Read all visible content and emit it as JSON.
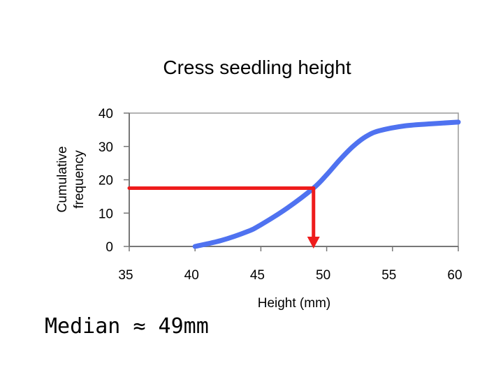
{
  "chart_data": {
    "type": "line",
    "title": "Cress seedling height",
    "xlabel": "Height (mm)",
    "ylabel_line1": "Cumulative",
    "ylabel_line2": "frequency",
    "xlim": [
      35,
      60
    ],
    "ylim": [
      0,
      40
    ],
    "x_ticks": [
      35,
      40,
      45,
      50,
      55,
      60
    ],
    "y_ticks": [
      0,
      10,
      20,
      30,
      40
    ],
    "grid": false,
    "series": [
      {
        "color": "#4f72f0",
        "points": [
          [
            40,
            0
          ],
          [
            42,
            1.8
          ],
          [
            44,
            4.5
          ],
          [
            45,
            6.5
          ],
          [
            47,
            11.5
          ],
          [
            49,
            17.5
          ],
          [
            50,
            21.5
          ],
          [
            51,
            26
          ],
          [
            52,
            30
          ],
          [
            53,
            33
          ],
          [
            54,
            34.7
          ],
          [
            56,
            36.2
          ],
          [
            58,
            36.8
          ],
          [
            60,
            37.3
          ]
        ]
      }
    ],
    "median_marker": {
      "x": 49,
      "y": 17.5,
      "color": "#ee1c1c"
    }
  },
  "annotation": {
    "text": "Median ≈ 49mm"
  }
}
